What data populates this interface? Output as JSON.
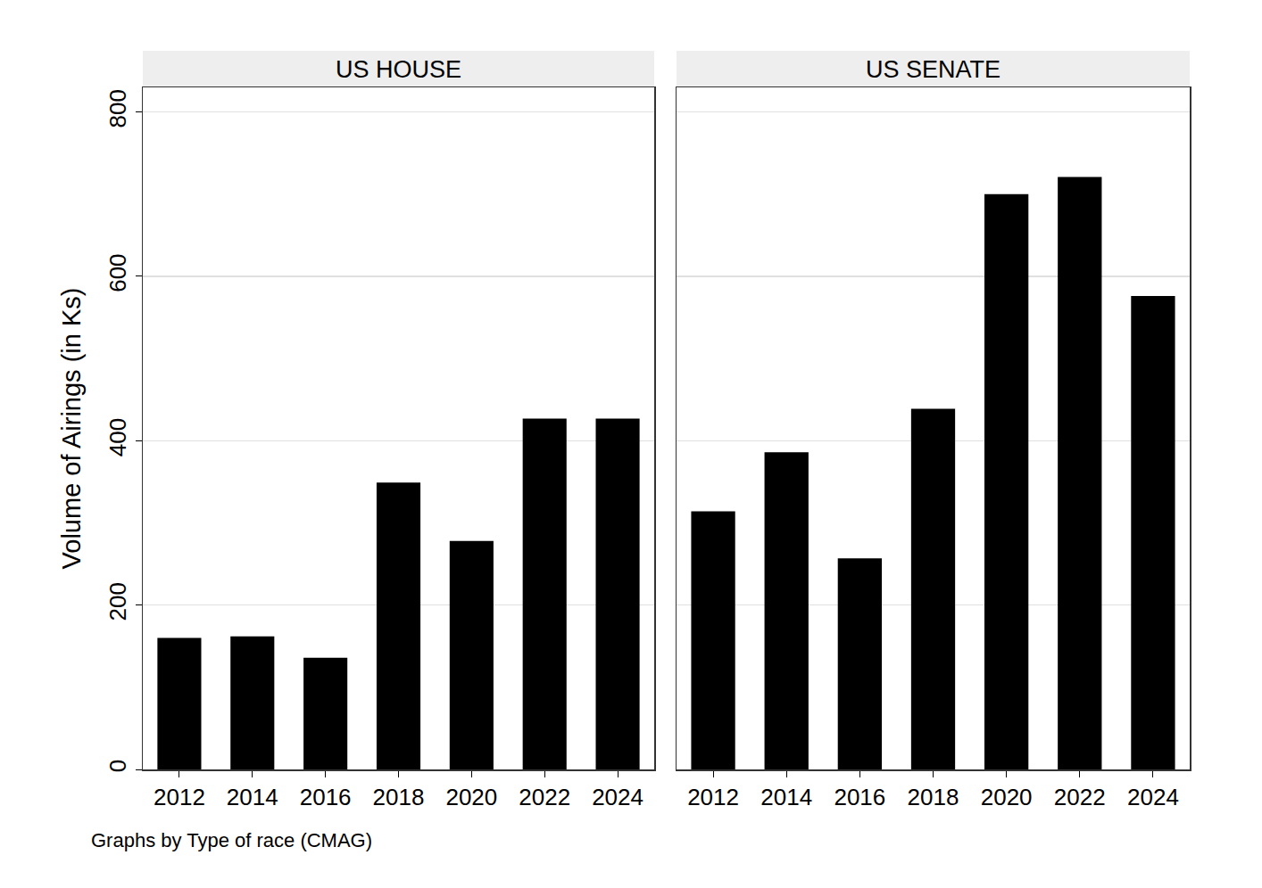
{
  "chart_data": [
    {
      "type": "bar",
      "title": "US HOUSE",
      "y_label": "Volume of Airings (in Ks)",
      "annotations": [
        "Graphs by Type of race (CMAG)"
      ],
      "categories": [
        "2012",
        "2014",
        "2016",
        "2018",
        "2020",
        "2022",
        "2024"
      ],
      "values": [
        160,
        162,
        136,
        349,
        278,
        427,
        427
      ],
      "color": "#000000",
      "ylim": [
        0,
        830
      ],
      "yticks": [
        0,
        200,
        400,
        600,
        800
      ],
      "grid": true
    },
    {
      "type": "bar",
      "title": "US SENATE",
      "categories": [
        "2012",
        "2014",
        "2016",
        "2018",
        "2020",
        "2022",
        "2024"
      ],
      "values": [
        314,
        386,
        257,
        439,
        700,
        721,
        576
      ],
      "color": "#000000",
      "ylim": [
        0,
        830
      ],
      "yticks": [
        0,
        200,
        400,
        600,
        800
      ],
      "grid": true,
      "tick_labels": "x"
    }
  ]
}
